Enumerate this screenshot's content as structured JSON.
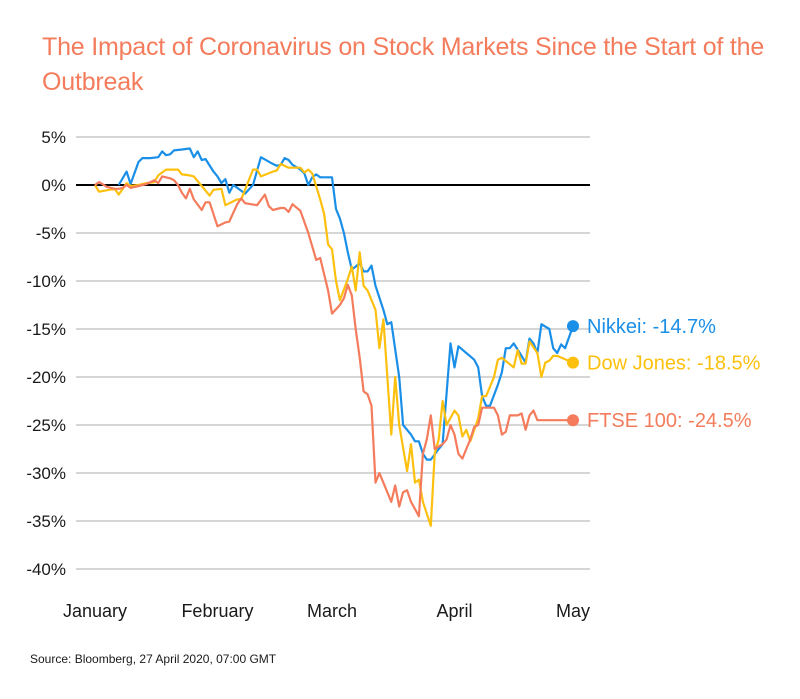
{
  "title": "The Impact of Coronavirus on Stock Markets Since the Start of the Outbreak",
  "source": "Source: Bloomberg, 27 April 2020, 07:00 GMT",
  "chart_data": {
    "type": "line",
    "title": "The Impact of Coronavirus on Stock Markets Since the Start of the Outbreak",
    "xlabel": "",
    "ylabel": "",
    "x_unit": "days since 1 January 2020",
    "xlim": [
      -5,
      125
    ],
    "x_ticks": [
      {
        "label": "January",
        "day": 0
      },
      {
        "label": "February",
        "day": 31
      },
      {
        "label": "March",
        "day": 60
      },
      {
        "label": "April",
        "day": 91
      },
      {
        "label": "May",
        "day": 121
      }
    ],
    "ylim": [
      -40,
      5
    ],
    "y_ticks": [
      5,
      0,
      -5,
      -10,
      -15,
      -20,
      -25,
      -30,
      -35,
      -40
    ],
    "y_tick_format": "{v}%",
    "grid": true,
    "zero_line": true,
    "legend": "inline-right",
    "series": [
      {
        "name": "Nikkei",
        "color": "#1a8fe8",
        "end_label": "Nikkei: -14.7%",
        "final_value": -14.7,
        "points": [
          [
            6,
            0.0
          ],
          [
            8,
            1.4
          ],
          [
            9,
            0.1
          ],
          [
            11,
            2.4
          ],
          [
            12,
            2.8
          ],
          [
            14,
            2.8
          ],
          [
            16,
            2.9
          ],
          [
            17,
            3.5
          ],
          [
            18,
            3.1
          ],
          [
            19,
            3.2
          ],
          [
            20,
            3.6
          ],
          [
            22,
            3.7
          ],
          [
            24,
            3.8
          ],
          [
            25,
            2.9
          ],
          [
            26,
            3.5
          ],
          [
            27,
            2.6
          ],
          [
            28,
            2.7
          ],
          [
            30,
            1.4
          ],
          [
            31,
            0.9
          ],
          [
            32,
            0.2
          ],
          [
            33,
            0.6
          ],
          [
            34,
            -0.8
          ],
          [
            35,
            0.0
          ],
          [
            37,
            -0.6
          ],
          [
            38,
            -0.9
          ],
          [
            40,
            0.0
          ],
          [
            42,
            2.9
          ],
          [
            45,
            2.2
          ],
          [
            46,
            2.0
          ],
          [
            47,
            2.1
          ],
          [
            48,
            2.8
          ],
          [
            49,
            2.6
          ],
          [
            50,
            2.1
          ],
          [
            52,
            1.6
          ],
          [
            53,
            1.2
          ],
          [
            54,
            0.0
          ],
          [
            55,
            0.8
          ],
          [
            56,
            1.1
          ],
          [
            57,
            0.8
          ],
          [
            58,
            0.8
          ],
          [
            60,
            0.8
          ],
          [
            61,
            -2.5
          ],
          [
            62,
            -3.5
          ],
          [
            63,
            -5.0
          ],
          [
            64,
            -7.0
          ],
          [
            65,
            -8.8
          ],
          [
            66,
            -8.5
          ],
          [
            67,
            -8.1
          ],
          [
            68,
            -9.0
          ],
          [
            69,
            -9.0
          ],
          [
            70,
            -8.4
          ],
          [
            71,
            -10.5
          ],
          [
            73,
            -13.0
          ],
          [
            74,
            -14.5
          ],
          [
            75,
            -14.3
          ],
          [
            77,
            -20.0
          ],
          [
            78,
            -25.0
          ],
          [
            80,
            -26.0
          ],
          [
            81,
            -26.7
          ],
          [
            82,
            -26.7
          ],
          [
            83,
            -28.0
          ],
          [
            84,
            -28.6
          ],
          [
            85,
            -28.6
          ],
          [
            87,
            -27.5
          ],
          [
            88,
            -27.0
          ],
          [
            90,
            -16.5
          ],
          [
            91,
            -19.0
          ],
          [
            92,
            -16.8
          ],
          [
            94,
            -17.5
          ],
          [
            96,
            -18.2
          ],
          [
            97,
            -19.0
          ],
          [
            98,
            -22.0
          ],
          [
            99,
            -23.0
          ],
          [
            100,
            -23.0
          ],
          [
            102,
            -20.8
          ],
          [
            103,
            -19.5
          ],
          [
            104,
            -17.0
          ],
          [
            105,
            -17.0
          ],
          [
            106,
            -16.5
          ],
          [
            108,
            -17.8
          ],
          [
            109,
            -18.5
          ],
          [
            110,
            -16.0
          ],
          [
            111,
            -16.5
          ],
          [
            112,
            -17.5
          ],
          [
            113,
            -14.5
          ],
          [
            115,
            -15.0
          ],
          [
            116,
            -17.0
          ],
          [
            117,
            -17.5
          ],
          [
            118,
            -16.6
          ],
          [
            119,
            -17.0
          ],
          [
            121,
            -14.7
          ]
        ]
      },
      {
        "name": "Dow Jones",
        "color": "#fdc00f",
        "end_label": "Dow Jones: -18.5%",
        "final_value": -18.5,
        "points": [
          [
            0,
            0.0
          ],
          [
            1,
            -0.7
          ],
          [
            5,
            -0.4
          ],
          [
            6,
            -1.0
          ],
          [
            8,
            0.2
          ],
          [
            9,
            -0.1
          ],
          [
            11,
            0.0
          ],
          [
            13,
            0.2
          ],
          [
            15,
            0.3
          ],
          [
            16,
            1.0
          ],
          [
            18,
            1.6
          ],
          [
            20,
            1.6
          ],
          [
            21,
            1.6
          ],
          [
            22,
            1.1
          ],
          [
            24,
            1.0
          ],
          [
            25,
            0.9
          ],
          [
            27,
            -0.1
          ],
          [
            29,
            -1.1
          ],
          [
            30,
            -0.5
          ],
          [
            32,
            -0.4
          ],
          [
            33,
            -2.1
          ],
          [
            36,
            -1.5
          ],
          [
            37,
            -1.5
          ],
          [
            40,
            1.6
          ],
          [
            41,
            1.6
          ],
          [
            42,
            0.9
          ],
          [
            45,
            1.4
          ],
          [
            46,
            1.5
          ],
          [
            47,
            2.2
          ],
          [
            49,
            1.8
          ],
          [
            51,
            1.8
          ],
          [
            52,
            1.8
          ],
          [
            53,
            1.3
          ],
          [
            54,
            1.6
          ],
          [
            55,
            1.2
          ],
          [
            57,
            -1.5
          ],
          [
            58,
            -3.0
          ],
          [
            59,
            -6.2
          ],
          [
            60,
            -6.7
          ],
          [
            61,
            -10.0
          ],
          [
            62,
            -12.0
          ],
          [
            64,
            -9.8
          ],
          [
            65,
            -8.5
          ],
          [
            66,
            -11.0
          ],
          [
            67,
            -7.0
          ],
          [
            68,
            -10.5
          ],
          [
            69,
            -11.0
          ],
          [
            71,
            -13.0
          ],
          [
            72,
            -17.0
          ],
          [
            73,
            -14.0
          ],
          [
            75,
            -26.0
          ],
          [
            76,
            -20.0
          ],
          [
            77,
            -25.0
          ],
          [
            79,
            -29.8
          ],
          [
            80,
            -27.0
          ],
          [
            81,
            -31.0
          ],
          [
            82,
            -30.7
          ],
          [
            83,
            -33.0
          ],
          [
            85,
            -35.5
          ],
          [
            86,
            -28.0
          ],
          [
            87,
            -26.5
          ],
          [
            88,
            -22.5
          ],
          [
            89,
            -25.0
          ],
          [
            91,
            -23.5
          ],
          [
            92,
            -24.0
          ],
          [
            93,
            -26.2
          ],
          [
            94,
            -25.5
          ],
          [
            95,
            -26.7
          ],
          [
            97,
            -24.3
          ],
          [
            98,
            -22.0
          ],
          [
            99,
            -22.0
          ],
          [
            101,
            -20.0
          ],
          [
            102,
            -18.2
          ],
          [
            103,
            -18.0
          ],
          [
            106,
            -19.0
          ],
          [
            107,
            -17.2
          ],
          [
            108,
            -18.6
          ],
          [
            109,
            -18.6
          ],
          [
            110,
            -16.3
          ],
          [
            112,
            -17.5
          ],
          [
            113,
            -20.0
          ],
          [
            114,
            -18.5
          ],
          [
            115,
            -18.3
          ],
          [
            116,
            -17.8
          ],
          [
            117,
            -17.8
          ],
          [
            121,
            -18.5
          ]
        ]
      },
      {
        "name": "FTSE 100",
        "color": "#f47c5c",
        "end_label": "FTSE 100: -24.5%",
        "final_value": -24.5,
        "points": [
          [
            0,
            0.0
          ],
          [
            1,
            0.3
          ],
          [
            3,
            -0.2
          ],
          [
            5,
            -0.4
          ],
          [
            6,
            -0.4
          ],
          [
            7,
            -0.3
          ],
          [
            8,
            0.0
          ],
          [
            9,
            -0.3
          ],
          [
            11,
            -0.1
          ],
          [
            13,
            0.1
          ],
          [
            15,
            0.5
          ],
          [
            16,
            0.2
          ],
          [
            17,
            0.9
          ],
          [
            19,
            0.7
          ],
          [
            20,
            0.5
          ],
          [
            21,
            0.0
          ],
          [
            22,
            -0.8
          ],
          [
            23,
            -1.4
          ],
          [
            24,
            -0.4
          ],
          [
            25,
            -1.5
          ],
          [
            27,
            -2.6
          ],
          [
            28,
            -1.8
          ],
          [
            29,
            -1.8
          ],
          [
            31,
            -4.3
          ],
          [
            33,
            -3.9
          ],
          [
            34,
            -3.8
          ],
          [
            36,
            -2.0
          ],
          [
            37,
            -1.4
          ],
          [
            38,
            -1.9
          ],
          [
            41,
            -2.1
          ],
          [
            43,
            -1.0
          ],
          [
            44,
            -2.2
          ],
          [
            45,
            -2.6
          ],
          [
            47,
            -2.4
          ],
          [
            48,
            -2.4
          ],
          [
            49,
            -2.8
          ],
          [
            50,
            -2.0
          ],
          [
            52,
            -2.7
          ],
          [
            54,
            -5.0
          ],
          [
            56,
            -7.8
          ],
          [
            57,
            -7.6
          ],
          [
            59,
            -11.0
          ],
          [
            60,
            -13.4
          ],
          [
            62,
            -12.5
          ],
          [
            63,
            -11.8
          ],
          [
            64,
            -10.4
          ],
          [
            65,
            -11.5
          ],
          [
            66,
            -15.0
          ],
          [
            67,
            -18.0
          ],
          [
            68,
            -21.5
          ],
          [
            69,
            -21.8
          ],
          [
            70,
            -23.0
          ],
          [
            71,
            -31.0
          ],
          [
            72,
            -30.0
          ],
          [
            74,
            -32.0
          ],
          [
            75,
            -33.0
          ],
          [
            76,
            -31.3
          ],
          [
            77,
            -33.5
          ],
          [
            78,
            -32.0
          ],
          [
            79,
            -31.8
          ],
          [
            80,
            -33.0
          ],
          [
            82,
            -34.5
          ],
          [
            83,
            -28.0
          ],
          [
            84,
            -26.5
          ],
          [
            85,
            -24.0
          ],
          [
            86,
            -27.5
          ],
          [
            88,
            -27.0
          ],
          [
            89,
            -26.5
          ],
          [
            90,
            -25.0
          ],
          [
            91,
            -26.0
          ],
          [
            92,
            -28.0
          ],
          [
            93,
            -28.5
          ],
          [
            94,
            -27.5
          ],
          [
            95,
            -26.5
          ],
          [
            96,
            -25.2
          ],
          [
            97,
            -25.0
          ],
          [
            98,
            -23.2
          ],
          [
            101,
            -23.2
          ],
          [
            102,
            -24.0
          ],
          [
            103,
            -26.0
          ],
          [
            104,
            -25.7
          ],
          [
            105,
            -24.0
          ],
          [
            107,
            -24.0
          ],
          [
            108,
            -23.8
          ],
          [
            109,
            -25.5
          ],
          [
            110,
            -24.0
          ],
          [
            111,
            -23.5
          ],
          [
            112,
            -24.5
          ],
          [
            113,
            -24.5
          ],
          [
            115,
            -24.5
          ],
          [
            116,
            -24.5
          ],
          [
            121,
            -24.5
          ]
        ]
      }
    ]
  }
}
